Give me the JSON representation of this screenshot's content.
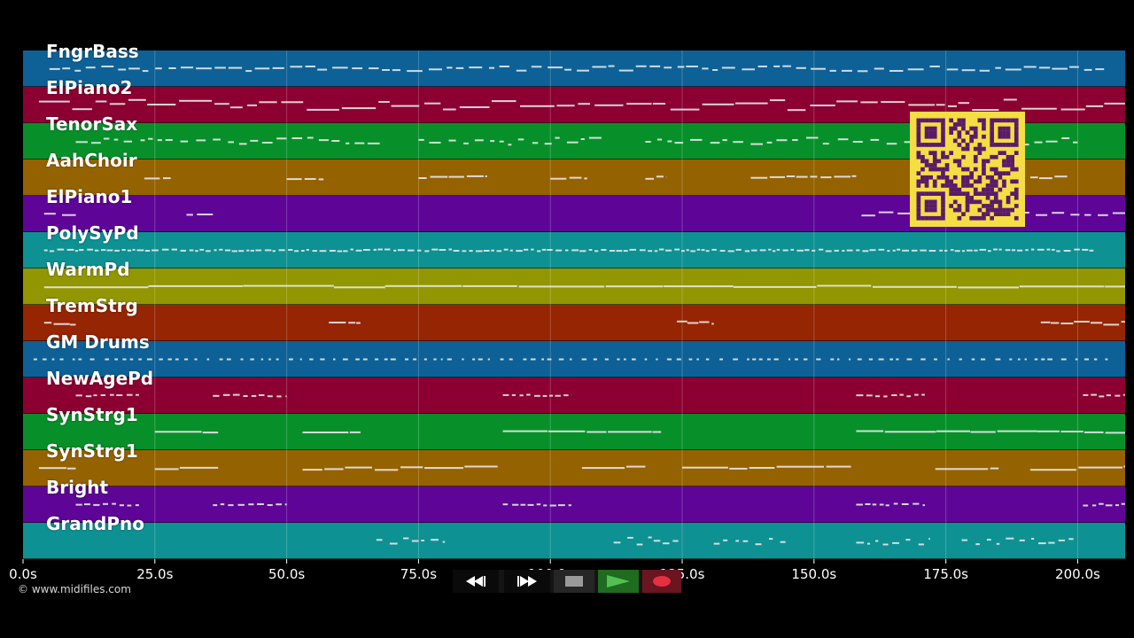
{
  "tracks": [
    {
      "name": "FngrBass",
      "color": "#0d6196"
    },
    {
      "name": "ElPiano2",
      "color": "#8b0030"
    },
    {
      "name": "TenorSax",
      "color": "#07902a"
    },
    {
      "name": "AahChoir",
      "color": "#956200"
    },
    {
      "name": "ElPiano1",
      "color": "#5e0598"
    },
    {
      "name": "PolySyPd",
      "color": "#0e9192"
    },
    {
      "name": "WarmPd",
      "color": "#929600"
    },
    {
      "name": "TremStrg",
      "color": "#952503"
    },
    {
      "name": "GM Drums",
      "color": "#0d6196"
    },
    {
      "name": "NewAgePd",
      "color": "#8b0030"
    },
    {
      "name": "SynStrg1",
      "color": "#07902a"
    },
    {
      "name": "SynStrg1",
      "color": "#956200"
    },
    {
      "name": "Bright",
      "color": "#5e0598"
    },
    {
      "name": "GrandPno",
      "color": "#0e9192"
    }
  ],
  "timeline": {
    "tick_labels": [
      "0.0s",
      "25.0s",
      "50.0s",
      "75.0s",
      "100.0s",
      "125.0s",
      "150.0s",
      "175.0s",
      "200.0s"
    ],
    "tick_values": [
      0,
      25,
      50,
      75,
      100,
      125,
      150,
      175,
      200
    ],
    "max_seconds": 209
  },
  "copyright": "© www.midifiles.com",
  "transport": {
    "rewind": "rewind-icon",
    "fast_forward": "fast-forward-icon",
    "stop": "stop-icon",
    "play": "play-icon",
    "record": "record-icon"
  },
  "colors": {
    "background": "#000000",
    "note": "#e8e8e8",
    "qr_background": "#f4dd45",
    "qr_modules": "#5a1a6a",
    "play_button": "#2e8b2e",
    "record_button": "#8b1d26"
  }
}
